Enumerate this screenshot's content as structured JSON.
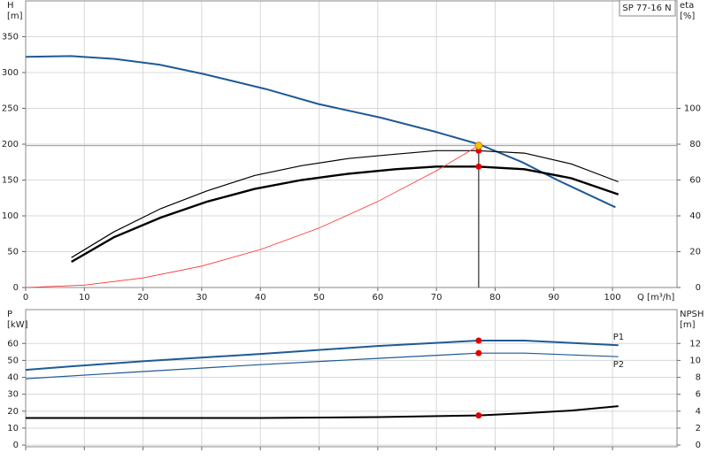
{
  "chart_data": [
    {
      "type": "line",
      "title": "SP 77-16 N",
      "x_label": "Q [m³/h]",
      "y_label": [
        "H",
        "[m]"
      ],
      "y2_label": [
        "eta",
        "[%]"
      ],
      "xlim": [
        0,
        111
      ],
      "xticks": [
        0,
        10,
        20,
        30,
        40,
        50,
        60,
        70,
        80,
        90,
        100
      ],
      "ylim": [
        0,
        400
      ],
      "yticks": [
        0,
        50,
        100,
        150,
        200,
        250,
        300,
        350
      ],
      "y2lim": [
        0,
        160
      ],
      "y2ticks": [
        0,
        20,
        40,
        60,
        80,
        100
      ],
      "grid": true,
      "series": [
        {
          "color": "#1f5a96",
          "width": 2,
          "x": [
            0,
            7.7,
            15.2,
            22.8,
            30.3,
            40.9,
            49.9,
            60.5,
            69.5,
            77.2,
            84.6,
            90.6,
            100.5
          ],
          "values": [
            322,
            323,
            319,
            311,
            298,
            277,
            256,
            237,
            218,
            200,
            175,
            150,
            112
          ]
        },
        {
          "color": "#000000",
          "width": 1.2,
          "axis": "y2",
          "x": [
            7.8,
            15,
            23,
            31,
            39,
            47,
            55,
            63,
            70,
            77,
            85,
            93,
            101
          ],
          "values": [
            16.7,
            31,
            44,
            54,
            62.5,
            68,
            72,
            74.4,
            76.4,
            76.4,
            75,
            69,
            59
          ]
        },
        {
          "color": "#000000",
          "width": 2.4,
          "axis": "y2",
          "x": [
            7.8,
            15,
            23,
            31,
            39,
            47,
            55,
            63,
            70,
            77,
            85,
            93,
            101
          ],
          "values": [
            14.3,
            28,
            39,
            48,
            55,
            60,
            63.5,
            66,
            67.5,
            67.5,
            66,
            61,
            52
          ]
        },
        {
          "color": "#ff3030",
          "width": 0.8,
          "x": [
            0,
            10,
            20,
            30,
            40,
            50,
            60,
            70,
            77.2
          ],
          "values": [
            0,
            3.3,
            13.3,
            29.9,
            53,
            83,
            120,
            163,
            198
          ]
        }
      ],
      "duty_point": {
        "x": 77.2,
        "value": 198,
        "color": "#f5c400"
      },
      "points": [
        {
          "x": 77.2,
          "value": 76.4,
          "axis": "y2",
          "color": "#e00000"
        },
        {
          "x": 77.2,
          "value": 67.5,
          "axis": "y2",
          "color": "#e00000"
        }
      ]
    },
    {
      "type": "line",
      "y_label": [
        "P",
        "[kW]"
      ],
      "y2_label": [
        "NPSH",
        "[m]"
      ],
      "xlim": [
        0,
        111
      ],
      "xticks": [
        0,
        10,
        20,
        30,
        40,
        50,
        60,
        70,
        80,
        90,
        100
      ],
      "ylim": [
        -1,
        80
      ],
      "yticks": [
        0,
        10,
        20,
        30,
        40,
        50,
        60
      ],
      "y2lim": [
        -0.2,
        16
      ],
      "y2ticks": [
        0,
        2,
        4,
        6,
        8,
        10,
        12
      ],
      "grid": true,
      "series": [
        {
          "name": "P1",
          "color": "#1f5a96",
          "width": 2,
          "x": [
            0,
            7.8,
            20,
            40,
            60,
            77.2,
            85,
            101
          ],
          "values": [
            44.4,
            46.5,
            49.5,
            53.8,
            58.5,
            61.7,
            61.7,
            59
          ]
        },
        {
          "name": "P2",
          "color": "#1f5a96",
          "width": 1.2,
          "x": [
            0,
            20,
            40,
            60,
            77.2,
            85,
            101
          ],
          "values": [
            39.2,
            43.4,
            47.5,
            51.2,
            54.3,
            54.3,
            52.2
          ]
        },
        {
          "color": "#000000",
          "width": 2,
          "axis": "y2",
          "x": [
            0,
            40,
            60,
            77.2,
            85,
            93,
            101
          ],
          "values": [
            3.2,
            3.2,
            3.3,
            3.5,
            3.76,
            4.07,
            4.6
          ]
        }
      ],
      "points": [
        {
          "x": 77.2,
          "value": 61.7,
          "color": "#e00000"
        },
        {
          "x": 77.2,
          "value": 54.3,
          "color": "#e00000"
        },
        {
          "x": 77.2,
          "value": 3.5,
          "axis": "y2",
          "color": "#e00000"
        }
      ]
    }
  ]
}
